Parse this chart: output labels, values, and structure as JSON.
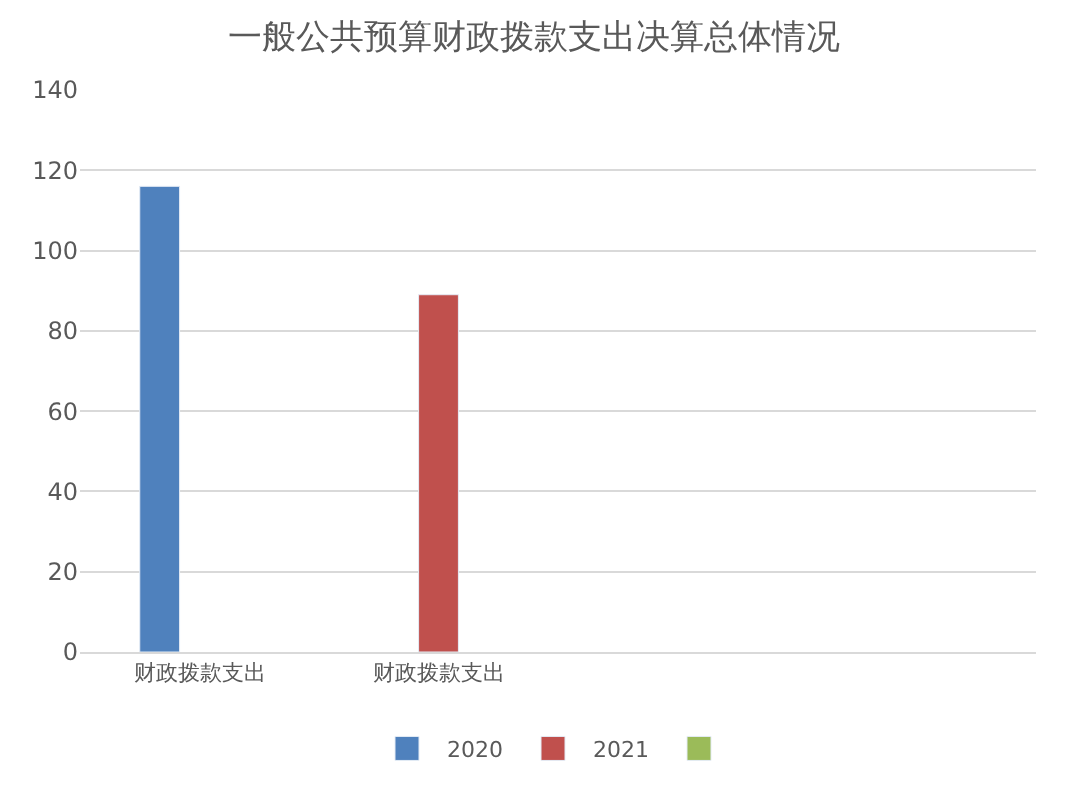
{
  "chart_data": {
    "type": "bar",
    "title": "一般公共预算财政拨款支出决算总体情况",
    "categories": [
      "财政拨款支出",
      "财政拨款支出",
      null,
      null
    ],
    "series": [
      {
        "name": "2020",
        "color": "#4f81bd",
        "values": [
          116,
          null,
          null,
          null
        ]
      },
      {
        "name": "2021",
        "color": "#c0504d",
        "values": [
          null,
          89,
          null,
          null
        ]
      },
      {
        "color": "#9bbb59",
        "values": [
          null,
          null,
          null,
          null
        ]
      }
    ],
    "ylim": [
      0,
      140
    ],
    "yticks": [
      0,
      20,
      40,
      60,
      80,
      100,
      120,
      140
    ],
    "grid": "y",
    "legend": "bottom"
  }
}
